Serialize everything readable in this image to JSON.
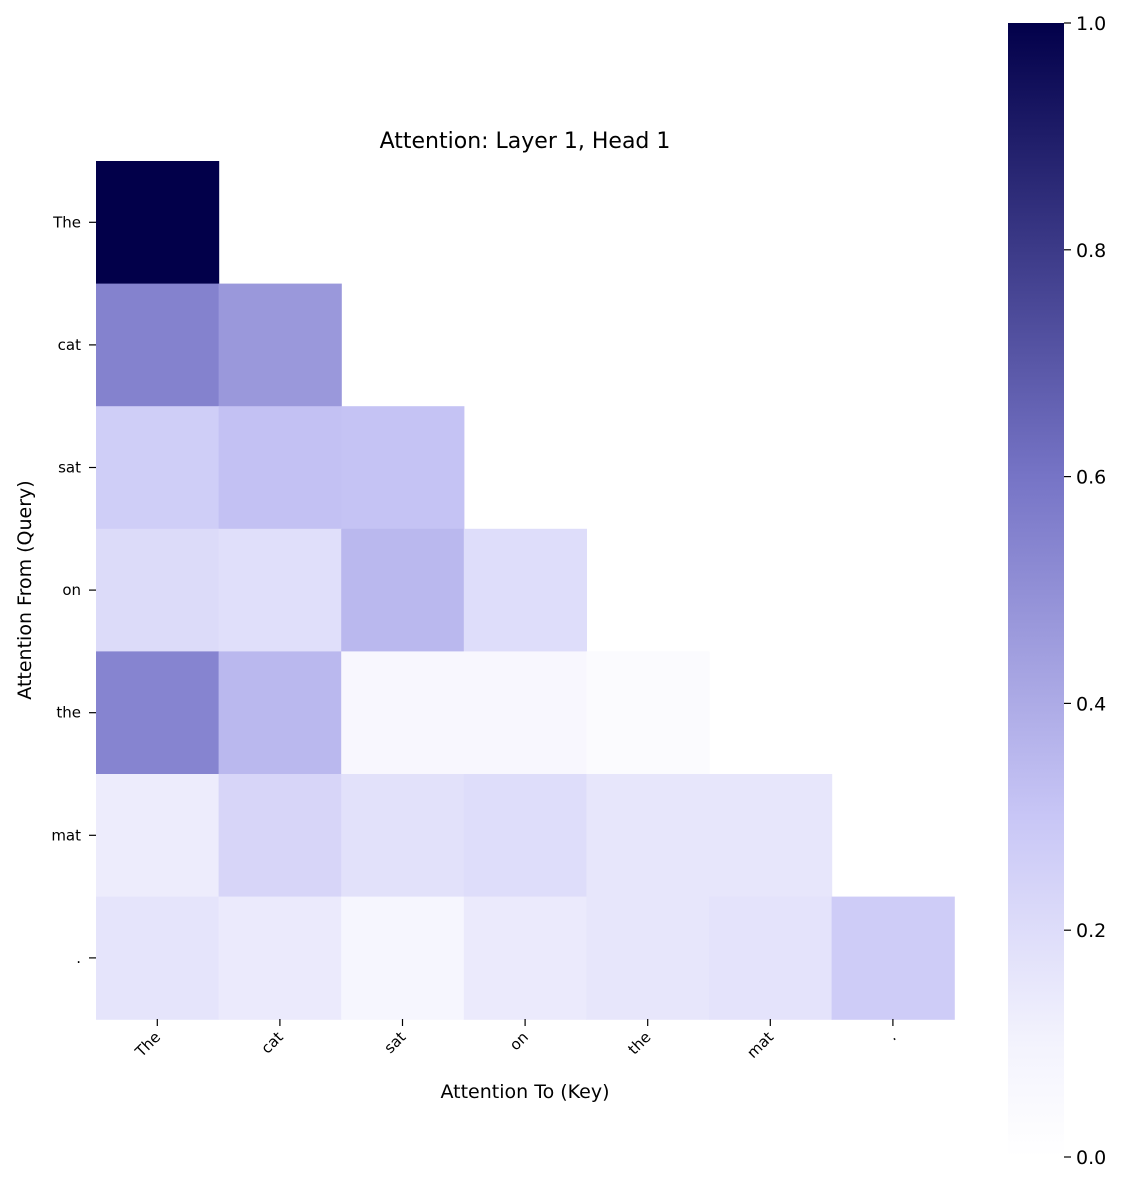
{
  "chart_data": {
    "type": "heatmap",
    "title": "Attention: Layer 1, Head 1",
    "xlabel": "Attention To (Key)",
    "ylabel": "Attention From (Query)",
    "x_categories": [
      "The",
      "cat",
      "sat",
      "on",
      "the",
      "mat",
      "."
    ],
    "y_categories": [
      "The",
      "cat",
      "sat",
      "on",
      "the",
      "mat",
      "."
    ],
    "values": [
      [
        1.0,
        null,
        null,
        null,
        null,
        null,
        null
      ],
      [
        0.55,
        0.47,
        null,
        null,
        null,
        null,
        null
      ],
      [
        0.26,
        0.32,
        0.31,
        null,
        null,
        null,
        null
      ],
      [
        0.19,
        0.17,
        0.35,
        0.18,
        null,
        null,
        null
      ],
      [
        0.54,
        0.35,
        0.04,
        0.04,
        0.02,
        null,
        null
      ],
      [
        0.1,
        0.22,
        0.16,
        0.18,
        0.13,
        0.13,
        null
      ],
      [
        0.14,
        0.11,
        0.05,
        0.11,
        0.13,
        0.15,
        0.27
      ]
    ],
    "masked": "upper triangle (no value drawn)",
    "colormap": [
      "#ffffff",
      "#c8c6f6",
      "#7674c6",
      "#02004a"
    ],
    "colorbar": {
      "range": [
        0.0,
        1.0
      ],
      "ticks": [
        "0.0",
        "0.2",
        "0.4",
        "0.6",
        "0.8",
        "1.0"
      ],
      "position": "right"
    },
    "grid": false
  }
}
